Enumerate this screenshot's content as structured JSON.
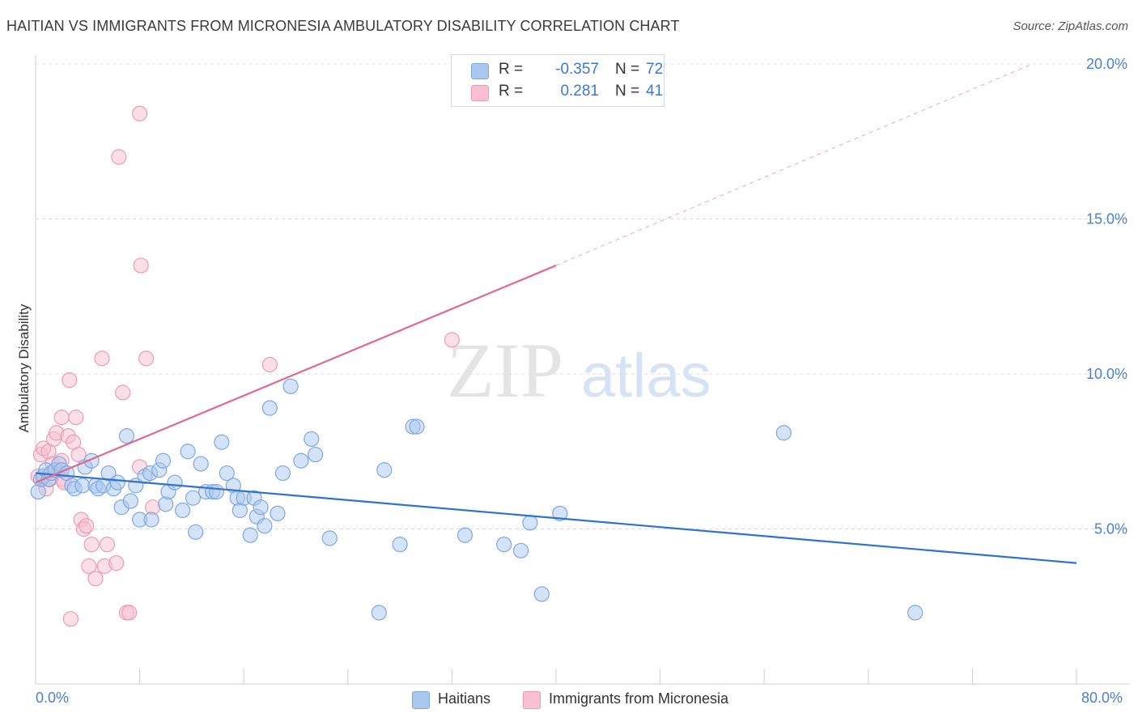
{
  "title": "HAITIAN VS IMMIGRANTS FROM MICRONESIA AMBULATORY DISABILITY CORRELATION CHART",
  "source": "Source: ZipAtlas.com",
  "watermark": {
    "zip": "ZIP",
    "atlas": "atlas"
  },
  "stats": [
    {
      "r_label": "R =",
      "r_value": "-0.357",
      "n_label": "N =",
      "n_value": "72",
      "color": "#a9c8f0",
      "border": "#7ea8e0"
    },
    {
      "r_label": "R =",
      "r_value": "0.281",
      "n_label": "N =",
      "n_value": "41",
      "color": "#f8bfd0",
      "border": "#ef9ab4"
    }
  ],
  "legend": [
    {
      "label": "Haitians",
      "color": "#a9c8f0",
      "border": "#7ea8e0"
    },
    {
      "label": "Immigrants from Micronesia",
      "color": "#f8bfd0",
      "border": "#ef9ab4"
    }
  ],
  "chart_data": {
    "type": "scatter",
    "ylabel": "Ambulatory Disability",
    "xlabel": "",
    "xlim": [
      0,
      80
    ],
    "ylim": [
      0,
      20
    ],
    "x_tick_labels": [
      "0.0%",
      "80.0%"
    ],
    "y_ticks": [
      5,
      10,
      15,
      20
    ],
    "y_tick_labels": [
      "5.0%",
      "10.0%",
      "15.0%",
      "20.0%"
    ],
    "grid": "horizontal dashed",
    "series": [
      {
        "name": "Haitians",
        "color": "#7ea8e0",
        "fill": "#a9c8f0",
        "trend_color": "#2f73cc",
        "trend": {
          "x": [
            0,
            80
          ],
          "y": [
            6.8,
            3.9
          ]
        },
        "points": [
          [
            0.2,
            6.2
          ],
          [
            0.4,
            6.6
          ],
          [
            0.6,
            6.7
          ],
          [
            0.8,
            6.9
          ],
          [
            1.0,
            6.6
          ],
          [
            1.2,
            6.8
          ],
          [
            1.5,
            6.9
          ],
          [
            1.8,
            7.1
          ],
          [
            2.0,
            6.9
          ],
          [
            2.4,
            6.8
          ],
          [
            2.8,
            6.4
          ],
          [
            3.0,
            6.3
          ],
          [
            3.6,
            6.4
          ],
          [
            3.8,
            7.0
          ],
          [
            4.3,
            7.2
          ],
          [
            4.6,
            6.4
          ],
          [
            4.8,
            6.3
          ],
          [
            5.2,
            6.4
          ],
          [
            5.6,
            6.8
          ],
          [
            6.0,
            6.3
          ],
          [
            6.3,
            6.5
          ],
          [
            6.6,
            5.7
          ],
          [
            7.0,
            8.0
          ],
          [
            7.3,
            5.9
          ],
          [
            7.7,
            6.4
          ],
          [
            8.0,
            5.3
          ],
          [
            8.4,
            6.7
          ],
          [
            8.8,
            6.8
          ],
          [
            8.9,
            5.3
          ],
          [
            9.5,
            6.9
          ],
          [
            9.8,
            7.2
          ],
          [
            10.0,
            5.8
          ],
          [
            10.2,
            6.2
          ],
          [
            10.7,
            6.5
          ],
          [
            11.3,
            5.6
          ],
          [
            11.7,
            7.5
          ],
          [
            12.1,
            6.0
          ],
          [
            12.3,
            4.9
          ],
          [
            12.7,
            7.1
          ],
          [
            13.1,
            6.2
          ],
          [
            13.6,
            6.2
          ],
          [
            13.9,
            6.2
          ],
          [
            14.3,
            7.8
          ],
          [
            14.7,
            6.8
          ],
          [
            15.2,
            6.4
          ],
          [
            15.5,
            6.0
          ],
          [
            15.7,
            5.6
          ],
          [
            16.0,
            6.0
          ],
          [
            16.5,
            4.8
          ],
          [
            16.8,
            6.0
          ],
          [
            17.0,
            5.4
          ],
          [
            17.3,
            5.7
          ],
          [
            17.6,
            5.1
          ],
          [
            18.0,
            8.9
          ],
          [
            18.6,
            5.5
          ],
          [
            19.0,
            6.8
          ],
          [
            19.6,
            9.6
          ],
          [
            20.4,
            7.2
          ],
          [
            21.2,
            7.9
          ],
          [
            21.5,
            7.4
          ],
          [
            22.6,
            4.7
          ],
          [
            26.4,
            2.3
          ],
          [
            26.8,
            6.9
          ],
          [
            28.0,
            4.5
          ],
          [
            29.0,
            8.3
          ],
          [
            29.3,
            8.3
          ],
          [
            33.0,
            4.8
          ],
          [
            36.0,
            4.5
          ],
          [
            37.3,
            4.3
          ],
          [
            38.0,
            5.2
          ],
          [
            38.9,
            2.9
          ],
          [
            40.3,
            5.5
          ],
          [
            57.5,
            8.1
          ],
          [
            67.6,
            2.3
          ]
        ]
      },
      {
        "name": "Immigrants from Micronesia",
        "color": "#ef9ab4",
        "fill": "#f8bfd0",
        "trend_color": "#e26890",
        "trend": {
          "x": [
            0,
            40
          ],
          "y": [
            6.5,
            13.5
          ]
        },
        "trend_extension": {
          "x": [
            40,
            76.6
          ],
          "y": [
            13.5,
            20.0
          ]
        },
        "points": [
          [
            0.2,
            6.7
          ],
          [
            0.4,
            7.4
          ],
          [
            0.6,
            7.6
          ],
          [
            0.8,
            6.3
          ],
          [
            1.0,
            7.5
          ],
          [
            1.1,
            6.6
          ],
          [
            1.3,
            7.1
          ],
          [
            1.4,
            7.9
          ],
          [
            1.6,
            8.1
          ],
          [
            1.8,
            6.9
          ],
          [
            2.0,
            7.2
          ],
          [
            2.1,
            6.6
          ],
          [
            2.2,
            6.5
          ],
          [
            2.0,
            8.6
          ],
          [
            2.5,
            8.0
          ],
          [
            2.6,
            9.8
          ],
          [
            2.7,
            2.1
          ],
          [
            2.9,
            7.8
          ],
          [
            3.1,
            8.6
          ],
          [
            3.3,
            7.4
          ],
          [
            3.5,
            5.3
          ],
          [
            3.7,
            5.0
          ],
          [
            3.9,
            5.1
          ],
          [
            4.1,
            3.8
          ],
          [
            4.3,
            4.5
          ],
          [
            4.6,
            3.4
          ],
          [
            5.1,
            10.5
          ],
          [
            5.3,
            3.8
          ],
          [
            5.5,
            4.5
          ],
          [
            6.2,
            3.9
          ],
          [
            6.4,
            17.0
          ],
          [
            6.7,
            9.4
          ],
          [
            7.0,
            2.3
          ],
          [
            7.2,
            2.3
          ],
          [
            8.0,
            7.0
          ],
          [
            8.0,
            18.4
          ],
          [
            8.1,
            13.5
          ],
          [
            8.5,
            10.5
          ],
          [
            9.0,
            5.7
          ],
          [
            18.0,
            10.3
          ],
          [
            32.0,
            11.1
          ]
        ]
      }
    ]
  }
}
